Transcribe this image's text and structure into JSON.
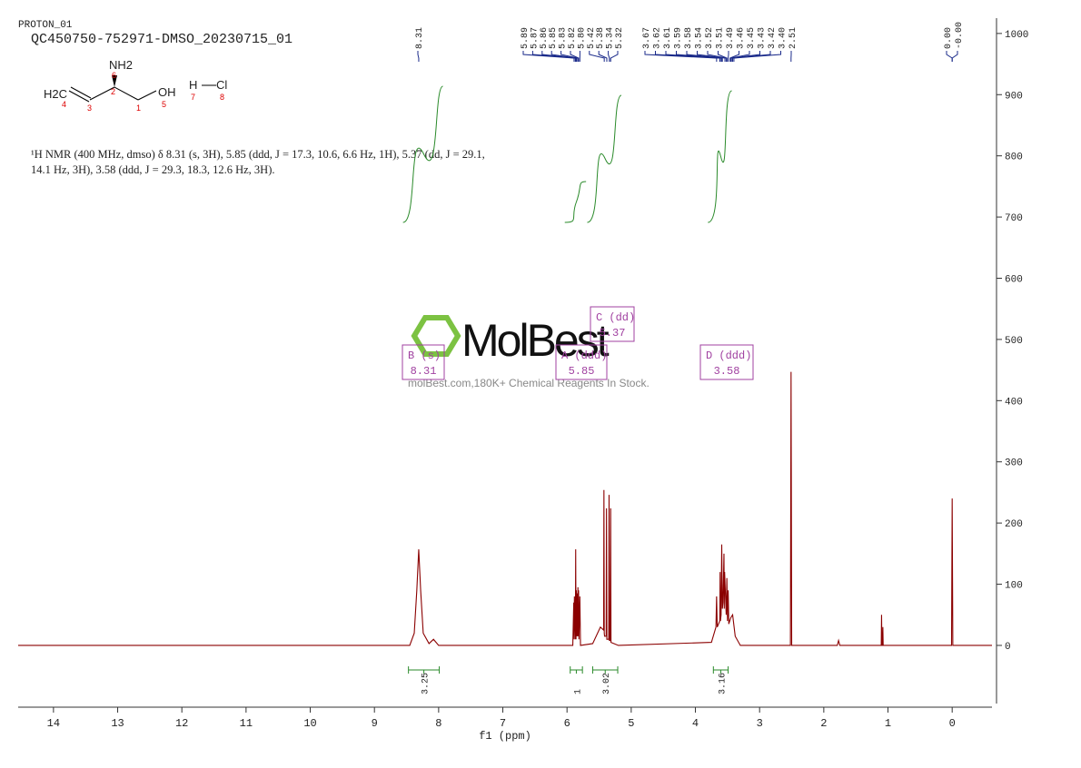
{
  "chart_data": {
    "type": "line",
    "experiment": "PROTON_01",
    "title": "QC450750-752971-DMSO_20230715_01",
    "description": [
      "¹H NMR (400 MHz, dmso) δ 8.31 (s, 3H), 5.85 (ddd, J = 17.3, 10.6, 6.6 Hz, 1H), 5.37 (dd, J = 29.1,",
      "14.1 Hz, 3H), 3.58 (ddd, J = 29.3, 18.3, 12.6 Hz, 3H)."
    ],
    "structure": {
      "atoms": [
        "NH2",
        "H2C",
        "OH",
        "H",
        "Cl"
      ],
      "numbers": [
        "6",
        "2",
        "4",
        "3",
        "1",
        "5",
        "7",
        "8"
      ]
    },
    "watermark": {
      "logo": "MolBest",
      "text": "molBest.com,180K+ Chemical Reagents In Stock."
    },
    "xlabel": "f1 (ppm)",
    "xlim": [
      14.55,
      -0.62
    ],
    "xticks": [
      14,
      13,
      12,
      11,
      10,
      9,
      8,
      7,
      6,
      5,
      4,
      3,
      2,
      1,
      0
    ],
    "ylim": [
      -95,
      1025
    ],
    "yticks": [
      0,
      100,
      200,
      300,
      400,
      500,
      600,
      700,
      800,
      900,
      1000
    ],
    "series": [
      {
        "name": "spectrum",
        "color": "#8b0000",
        "x": [
          14.55,
          8.45,
          8.38,
          8.34,
          8.31,
          8.28,
          8.24,
          8.15,
          8.08,
          8.0,
          5.91,
          5.895,
          5.89,
          5.885,
          5.87,
          5.865,
          5.86,
          5.855,
          5.85,
          5.845,
          5.835,
          5.83,
          5.825,
          5.82,
          5.815,
          5.8,
          5.79,
          5.6,
          5.48,
          5.43,
          5.425,
          5.42,
          5.415,
          5.39,
          5.385,
          5.38,
          5.375,
          5.35,
          5.345,
          5.34,
          5.335,
          5.325,
          5.32,
          5.315,
          5.2,
          3.75,
          3.68,
          3.67,
          3.66,
          3.62,
          3.615,
          3.61,
          3.6,
          3.59,
          3.58,
          3.57,
          3.555,
          3.55,
          3.545,
          3.52,
          3.51,
          3.5,
          3.49,
          3.48,
          3.45,
          3.42,
          3.38,
          3.3,
          2.52,
          2.51,
          2.5,
          1.79,
          1.77,
          1.75,
          1.105,
          1.1,
          1.095,
          1.085,
          1.08,
          1.075,
          0.01,
          0.0,
          -0.01,
          -0.62
        ],
        "values": [
          0,
          0,
          20,
          90,
          157,
          90,
          20,
          3,
          10,
          0,
          0,
          70,
          10,
          80,
          10,
          157,
          10,
          90,
          15,
          85,
          15,
          95,
          15,
          90,
          10,
          80,
          0,
          3,
          30,
          25,
          254,
          20,
          15,
          15,
          224,
          10,
          10,
          10,
          246,
          8,
          8,
          8,
          224,
          5,
          0,
          5,
          30,
          80,
          30,
          40,
          120,
          40,
          50,
          165,
          60,
          70,
          150,
          60,
          120,
          50,
          110,
          40,
          90,
          35,
          45,
          50,
          15,
          0,
          0,
          447,
          0,
          0,
          8,
          0,
          0,
          50,
          0,
          0,
          30,
          0,
          0,
          240,
          0,
          0
        ]
      }
    ],
    "peak_labels": [
      "8.31",
      "5.89",
      "5.87",
      "5.86",
      "5.85",
      "5.83",
      "5.82",
      "5.80",
      "5.42",
      "5.38",
      "5.34",
      "5.32",
      "3.67",
      "3.62",
      "3.61",
      "3.59",
      "3.58",
      "3.54",
      "3.52",
      "3.51",
      "3.49",
      "3.46",
      "3.45",
      "3.43",
      "3.42",
      "3.40",
      "2.51",
      "0.00",
      "-0.00"
    ],
    "integrals": [
      {
        "range": [
          8.47,
          7.99
        ],
        "value": 3.25
      },
      {
        "range": [
          5.95,
          5.76
        ],
        "value": 1.0,
        "label": "1.00"
      },
      {
        "range": [
          5.6,
          5.21
        ],
        "value": 3.02
      },
      {
        "range": [
          3.72,
          3.49
        ],
        "value": 3.16
      }
    ],
    "multiplets": [
      {
        "name": "B (s)",
        "shift": "8.31"
      },
      {
        "name": "A (ddd)",
        "shift": "5.85"
      },
      {
        "name": "C (dd)",
        "shift": "5.37"
      },
      {
        "name": "D (ddd)",
        "shift": "3.58"
      }
    ]
  }
}
